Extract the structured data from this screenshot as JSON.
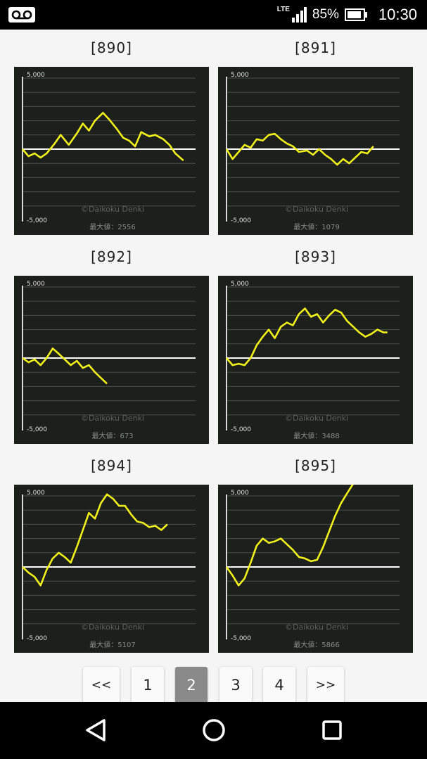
{
  "status": {
    "battery_pct": "85%",
    "time": "10:30",
    "network": "LTE",
    "icons": [
      "voicemail-icon",
      "signal-icon",
      "battery-icon"
    ]
  },
  "charts": [
    {
      "id": "[890]",
      "max_label": "最大値：2556",
      "watermark": "©Daikoku Denki",
      "y_top": "5,000",
      "y_bottom": "-5,000",
      "points": [
        [
          0,
          0
        ],
        [
          3,
          -500
        ],
        [
          6,
          -300
        ],
        [
          9,
          -600
        ],
        [
          12,
          -300
        ],
        [
          16,
          400
        ],
        [
          19,
          1000
        ],
        [
          23,
          300
        ],
        [
          27,
          1100
        ],
        [
          30,
          1800
        ],
        [
          33,
          1300
        ],
        [
          36,
          2000
        ],
        [
          40,
          2556
        ],
        [
          43,
          2100
        ],
        [
          47,
          1400
        ],
        [
          50,
          800
        ],
        [
          53,
          600
        ],
        [
          56,
          200
        ],
        [
          59,
          1200
        ],
        [
          63,
          900
        ],
        [
          66,
          1000
        ],
        [
          70,
          700
        ],
        [
          73,
          300
        ],
        [
          76,
          -300
        ],
        [
          80,
          -800
        ]
      ]
    },
    {
      "id": "[891]",
      "max_label": "最大値：1079",
      "watermark": "©Daikoku Denki",
      "y_top": "5,000",
      "y_bottom": "-5,000",
      "points": [
        [
          0,
          0
        ],
        [
          3,
          -700
        ],
        [
          6,
          -200
        ],
        [
          9,
          300
        ],
        [
          12,
          100
        ],
        [
          15,
          700
        ],
        [
          18,
          600
        ],
        [
          21,
          1000
        ],
        [
          24,
          1079
        ],
        [
          27,
          700
        ],
        [
          30,
          400
        ],
        [
          33,
          200
        ],
        [
          36,
          -200
        ],
        [
          40,
          -100
        ],
        [
          43,
          -400
        ],
        [
          46,
          0
        ],
        [
          49,
          -400
        ],
        [
          52,
          -700
        ],
        [
          55,
          -1100
        ],
        [
          58,
          -700
        ],
        [
          61,
          -1000
        ],
        [
          64,
          -600
        ],
        [
          67,
          -200
        ],
        [
          70,
          -300
        ],
        [
          73,
          200
        ]
      ]
    },
    {
      "id": "[892]",
      "max_label": "最大値：673",
      "watermark": "©Daikoku Denki",
      "y_top": "5,000",
      "y_bottom": "-5,000",
      "points": [
        [
          0,
          0
        ],
        [
          3,
          -300
        ],
        [
          6,
          -100
        ],
        [
          9,
          -500
        ],
        [
          12,
          0
        ],
        [
          15,
          673
        ],
        [
          18,
          300
        ],
        [
          21,
          -100
        ],
        [
          24,
          -500
        ],
        [
          27,
          -200
        ],
        [
          30,
          -700
        ],
        [
          33,
          -500
        ],
        [
          36,
          -1000
        ],
        [
          39,
          -1400
        ],
        [
          42,
          -1800
        ]
      ]
    },
    {
      "id": "[893]",
      "max_label": "最大値：3488",
      "watermark": "©Daikoku Denki",
      "y_top": "5,000",
      "y_bottom": "-5,000",
      "points": [
        [
          0,
          0
        ],
        [
          3,
          -500
        ],
        [
          6,
          -400
        ],
        [
          9,
          -500
        ],
        [
          12,
          0
        ],
        [
          15,
          900
        ],
        [
          18,
          1500
        ],
        [
          21,
          2000
        ],
        [
          24,
          1400
        ],
        [
          27,
          2200
        ],
        [
          30,
          2500
        ],
        [
          33,
          2300
        ],
        [
          36,
          3100
        ],
        [
          39,
          3488
        ],
        [
          42,
          2900
        ],
        [
          45,
          3100
        ],
        [
          48,
          2500
        ],
        [
          51,
          3000
        ],
        [
          54,
          3400
        ],
        [
          57,
          3200
        ],
        [
          60,
          2600
        ],
        [
          63,
          2200
        ],
        [
          66,
          1800
        ],
        [
          69,
          1500
        ],
        [
          72,
          1700
        ],
        [
          75,
          2000
        ],
        [
          78,
          1800
        ],
        [
          80,
          1800
        ]
      ]
    },
    {
      "id": "[894]",
      "max_label": "最大値：5107",
      "watermark": "©Daikoku Denki",
      "y_top": "5,000",
      "y_bottom": "-5,000",
      "points": [
        [
          0,
          0
        ],
        [
          3,
          -400
        ],
        [
          6,
          -700
        ],
        [
          9,
          -1300
        ],
        [
          12,
          -200
        ],
        [
          15,
          600
        ],
        [
          18,
          1000
        ],
        [
          21,
          700
        ],
        [
          24,
          300
        ],
        [
          27,
          1400
        ],
        [
          30,
          2600
        ],
        [
          33,
          3800
        ],
        [
          36,
          3400
        ],
        [
          39,
          4500
        ],
        [
          42,
          5107
        ],
        [
          45,
          4800
        ],
        [
          48,
          4300
        ],
        [
          51,
          4300
        ],
        [
          54,
          3700
        ],
        [
          57,
          3200
        ],
        [
          60,
          3100
        ],
        [
          63,
          2800
        ],
        [
          66,
          2900
        ],
        [
          69,
          2600
        ],
        [
          72,
          3000
        ]
      ]
    },
    {
      "id": "[895]",
      "max_label": "最大値：5866",
      "watermark": "©Daikoku Denki",
      "y_top": "5,000",
      "y_bottom": "-5,000",
      "points": [
        [
          0,
          0
        ],
        [
          3,
          -600
        ],
        [
          6,
          -1300
        ],
        [
          9,
          -800
        ],
        [
          12,
          300
        ],
        [
          15,
          1500
        ],
        [
          18,
          2000
        ],
        [
          21,
          1700
        ],
        [
          24,
          1800
        ],
        [
          27,
          2000
        ],
        [
          30,
          1600
        ],
        [
          33,
          1200
        ],
        [
          36,
          700
        ],
        [
          39,
          600
        ],
        [
          42,
          400
        ],
        [
          45,
          500
        ],
        [
          48,
          1400
        ],
        [
          51,
          2500
        ],
        [
          54,
          3600
        ],
        [
          57,
          4500
        ],
        [
          60,
          5200
        ],
        [
          63,
          5866
        ]
      ]
    }
  ],
  "pagination": {
    "first": "<<",
    "pages": [
      "1",
      "2",
      "3",
      "4"
    ],
    "active": "2",
    "last": ">>"
  },
  "nav": {
    "icons": [
      "back-icon",
      "home-icon",
      "recents-icon"
    ]
  }
}
